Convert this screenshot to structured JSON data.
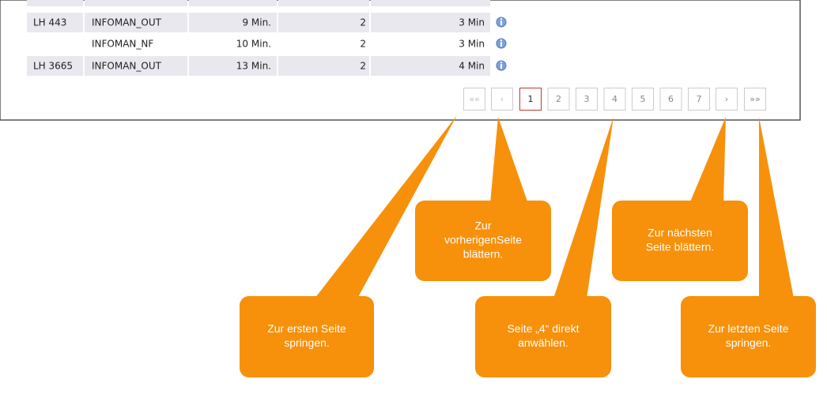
{
  "table": {
    "rows": [
      [
        "LH 443",
        "INFOMAN_OUT",
        "9 Min.",
        "2",
        "3 Min"
      ],
      [
        null,
        "INFOMAN_NF",
        "10 Min.",
        "2",
        "3 Min"
      ],
      [
        "LH 3665",
        "INFOMAN_OUT",
        "13 Min.",
        "2",
        "4 Min"
      ]
    ]
  },
  "pagination": {
    "first": "««",
    "prev": "‹",
    "pages": [
      "1",
      "2",
      "3",
      "4",
      "5",
      "6",
      "7"
    ],
    "next": "›",
    "last": "»»"
  },
  "callouts": [
    {
      "lines": [
        "Zur ersten Seite",
        "springen."
      ]
    },
    {
      "lines": [
        "Zur",
        "vorherigenSeite",
        "blättern."
      ]
    },
    {
      "lines": [
        "Seite „4“ direkt",
        "anwählen."
      ]
    },
    {
      "lines": [
        "Zur nächsten",
        "Seite blättern."
      ]
    },
    {
      "lines": [
        "Zur letzten Seite",
        "springen."
      ]
    }
  ]
}
